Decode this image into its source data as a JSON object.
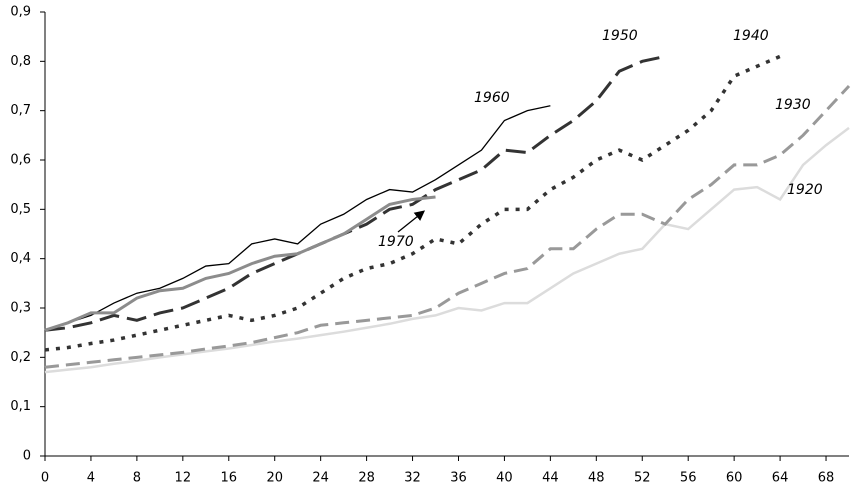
{
  "chart_data": {
    "type": "line",
    "x": [
      0,
      2,
      4,
      6,
      8,
      10,
      12,
      14,
      16,
      18,
      20,
      22,
      24,
      26,
      28,
      30,
      32,
      34,
      36,
      38,
      40,
      42,
      44,
      46,
      48,
      50,
      52,
      54,
      56,
      58,
      60,
      62,
      64,
      66,
      68,
      70
    ],
    "series": [
      {
        "name": "1920",
        "color": "#dcdcdc",
        "dash": "solid",
        "width": 2.5,
        "values": [
          0.17,
          0.175,
          0.18,
          0.187,
          0.193,
          0.2,
          0.206,
          0.212,
          0.218,
          0.225,
          0.232,
          0.238,
          0.245,
          0.252,
          0.26,
          0.268,
          0.278,
          0.285,
          0.3,
          0.295,
          0.31,
          0.31,
          0.34,
          0.37,
          0.39,
          0.41,
          0.42,
          0.47,
          0.46,
          0.5,
          0.54,
          0.545,
          0.52,
          0.59,
          0.63,
          0.665
        ]
      },
      {
        "name": "1930",
        "color": "#999999",
        "dash": "dashed",
        "width": 3,
        "values": [
          0.18,
          0.185,
          0.19,
          0.195,
          0.2,
          0.205,
          0.21,
          0.217,
          0.223,
          0.23,
          0.24,
          0.25,
          0.265,
          0.27,
          0.275,
          0.28,
          0.285,
          0.3,
          0.33,
          0.35,
          0.37,
          0.38,
          0.42,
          0.42,
          0.46,
          0.49,
          0.49,
          0.47,
          0.52,
          0.55,
          0.59,
          0.59,
          0.61,
          0.65,
          0.7,
          0.75
        ]
      },
      {
        "name": "1940",
        "color": "#333333",
        "dash": "dotted",
        "width": 3.5,
        "values": [
          0.215,
          0.22,
          0.228,
          0.235,
          0.245,
          0.255,
          0.265,
          0.275,
          0.285,
          0.275,
          0.285,
          0.3,
          0.33,
          0.36,
          0.38,
          0.39,
          0.41,
          0.44,
          0.43,
          0.47,
          0.5,
          0.5,
          0.54,
          0.565,
          0.6,
          0.62,
          0.6,
          0.63,
          0.66,
          0.7,
          0.77,
          0.79,
          0.81,
          null,
          null,
          null
        ]
      },
      {
        "name": "1950",
        "color": "#333333",
        "dash": "longdash",
        "width": 3,
        "values": [
          0.255,
          0.26,
          0.27,
          0.285,
          0.275,
          0.29,
          0.3,
          0.32,
          0.34,
          0.37,
          0.39,
          0.41,
          0.43,
          0.45,
          0.47,
          0.5,
          0.51,
          0.54,
          0.56,
          0.58,
          0.62,
          0.615,
          0.65,
          0.68,
          0.72,
          0.78,
          0.8,
          0.81,
          null,
          null,
          null,
          null,
          null,
          null,
          null,
          null
        ]
      },
      {
        "name": "1960",
        "color": "#000000",
        "dash": "solid",
        "width": 1.3,
        "values": [
          0.255,
          0.27,
          0.285,
          0.31,
          0.33,
          0.34,
          0.36,
          0.385,
          0.39,
          0.43,
          0.44,
          0.43,
          0.47,
          0.49,
          0.52,
          0.54,
          0.535,
          0.56,
          0.59,
          0.62,
          0.68,
          0.7,
          0.71,
          null,
          null,
          null,
          null,
          null,
          null,
          null,
          null,
          null,
          null,
          null,
          null,
          null
        ]
      },
      {
        "name": "1970",
        "color": "#8c8c8c",
        "dash": "solid",
        "width": 3,
        "values": [
          0.255,
          0.27,
          0.29,
          0.29,
          0.32,
          0.335,
          0.34,
          0.36,
          0.37,
          0.39,
          0.405,
          0.41,
          0.43,
          0.45,
          0.48,
          0.51,
          0.52,
          0.525,
          null,
          null,
          null,
          null,
          null,
          null,
          null,
          null,
          null,
          null,
          null,
          null,
          null,
          null,
          null,
          null,
          null,
          null
        ]
      }
    ],
    "xlim": [
      0,
      70
    ],
    "xticks": [
      0,
      4,
      8,
      12,
      16,
      20,
      24,
      28,
      32,
      36,
      40,
      44,
      48,
      52,
      56,
      60,
      64,
      68
    ],
    "ylim": [
      0,
      0.9
    ],
    "yticks": [
      {
        "value": 0,
        "label": "0"
      },
      {
        "value": 0.1,
        "label": "0,1"
      },
      {
        "value": 0.2,
        "label": "0,2"
      },
      {
        "value": 0.3,
        "label": "0,3"
      },
      {
        "value": 0.4,
        "label": "0,4"
      },
      {
        "value": 0.5,
        "label": "0,5"
      },
      {
        "value": 0.6,
        "label": "0,6"
      },
      {
        "value": 0.7,
        "label": "0,7"
      },
      {
        "value": 0.8,
        "label": "0,8"
      },
      {
        "value": 0.9,
        "label": "0,9"
      }
    ],
    "grid": false
  }
}
